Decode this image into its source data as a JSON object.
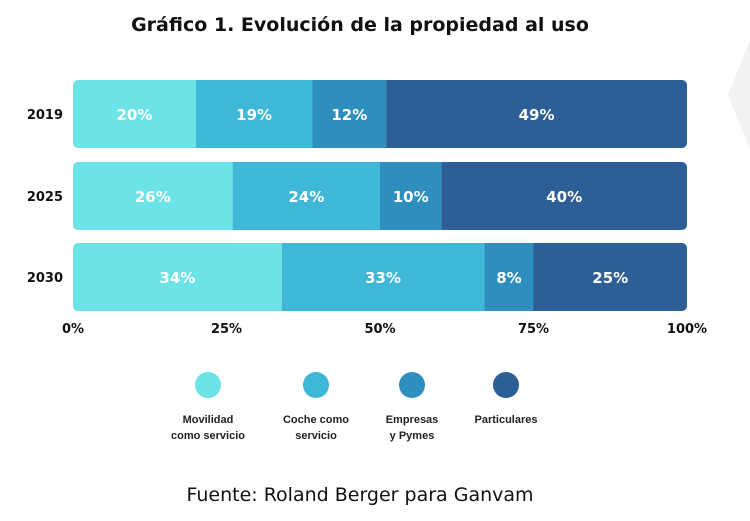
{
  "title": "Gráfico 1. Evolución de la propiedad al uso",
  "source": "Fuente: Roland Berger para Ganvam",
  "chart_data": {
    "type": "bar",
    "orientation": "horizontal",
    "stacked": true,
    "title": "Gráfico 1. Evolución de la propiedad al uso",
    "categories": [
      "2019",
      "2025",
      "2030"
    ],
    "series": [
      {
        "name": "Movilidad como servicio",
        "values": [
          20,
          26,
          34
        ],
        "color": "#6ce3e6"
      },
      {
        "name": "Coche como servicio",
        "values": [
          19,
          24,
          33
        ],
        "color": "#3fb7d6"
      },
      {
        "name": "Empresas y Pymes",
        "values": [
          12,
          10,
          8
        ],
        "color": "#2e8fbf"
      },
      {
        "name": "Particulares",
        "values": [
          49,
          40,
          25
        ],
        "color": "#2d5e96"
      }
    ],
    "data_labels": [
      [
        "20%",
        "19%",
        "12%",
        "49%"
      ],
      [
        "26%",
        "24%",
        "10%",
        "40%"
      ],
      [
        "34%",
        "33%",
        "8%",
        "25%"
      ]
    ],
    "xlim": [
      0,
      100
    ],
    "xticks": [
      "0%",
      "25%",
      "50%",
      "75%",
      "100%"
    ],
    "grid": false,
    "legend_position": "bottom"
  },
  "legend": [
    {
      "label": "Movilidad\ncomo servicio",
      "color": "#6ce3e6"
    },
    {
      "label": "Coche como\nservicio",
      "color": "#3fb7d6"
    },
    {
      "label": "Empresas\ny Pymes",
      "color": "#2e8fbf"
    },
    {
      "label": "Particulares",
      "color": "#2d5e96"
    }
  ]
}
